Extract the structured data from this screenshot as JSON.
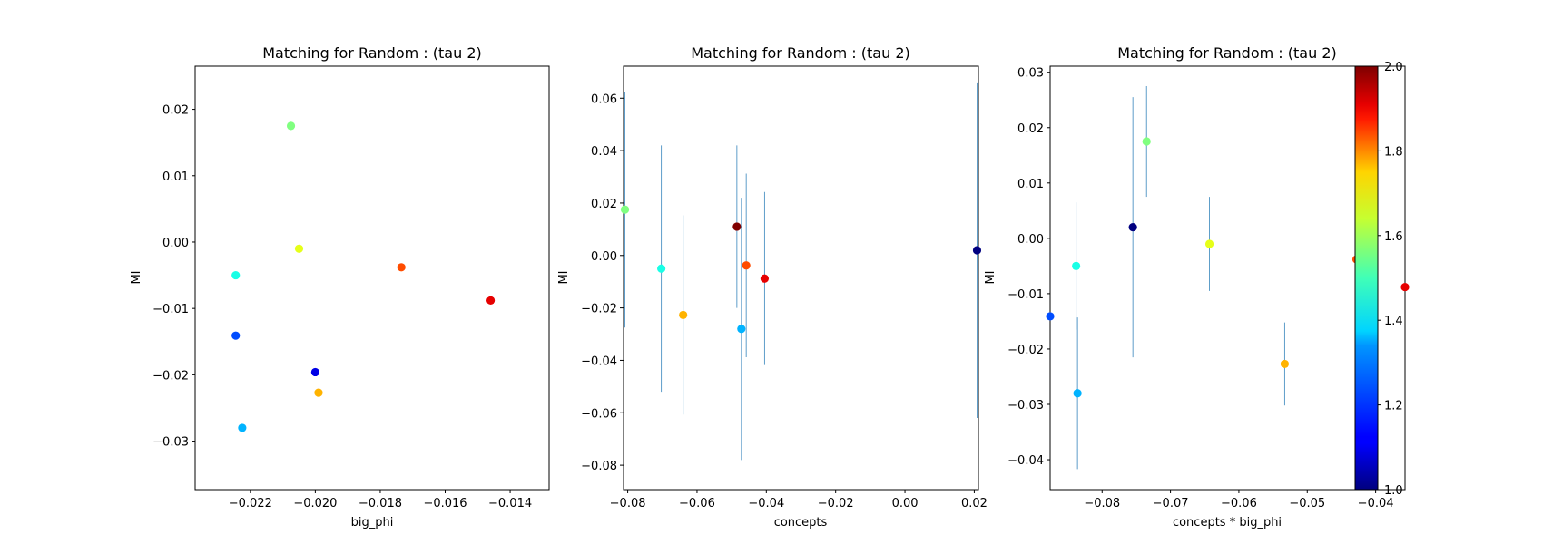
{
  "chart_data": [
    {
      "type": "scatter",
      "title": "Matching for Random : (tau 2)",
      "xlabel": "big_phi",
      "ylabel": "MI",
      "xlim": [
        -0.0237,
        -0.0128
      ],
      "ylim": [
        -0.0373,
        0.0265
      ],
      "xticks": [
        -0.022,
        -0.02,
        -0.018,
        -0.016,
        -0.014
      ],
      "xtick_labels": [
        "−0.022",
        "−0.020",
        "−0.018",
        "−0.016",
        "−0.014"
      ],
      "yticks": [
        -0.03,
        -0.02,
        -0.01,
        0.0,
        0.01,
        0.02
      ],
      "ytick_labels": [
        "−0.03",
        "−0.02",
        "−0.01",
        "0.00",
        "0.01",
        "0.02"
      ],
      "grid": false,
      "error_bars": false,
      "points": [
        {
          "x": -0.02075,
          "y": 0.0175,
          "c": 1.5
        },
        {
          "x": -0.0205,
          "y": -0.001,
          "c": 1.6
        },
        {
          "x": -0.02245,
          "y": -0.005,
          "c": 1.4
        },
        {
          "x": -0.01735,
          "y": -0.0038,
          "c": 1.8
        },
        {
          "x": -0.0146,
          "y": -0.0088,
          "c": 1.9
        },
        {
          "x": -0.02245,
          "y": -0.0141,
          "c": 1.2
        },
        {
          "x": -0.02,
          "y": -0.0196,
          "c": 1.1
        },
        {
          "x": -0.0199,
          "y": -0.0227,
          "c": 1.7
        },
        {
          "x": -0.02225,
          "y": -0.028,
          "c": 1.3
        }
      ]
    },
    {
      "type": "scatter",
      "title": "Matching for Random : (tau 2)",
      "xlabel": "concepts",
      "ylabel": "MI",
      "xlim": [
        -0.0812,
        0.0212
      ],
      "ylim": [
        -0.0893,
        0.0722
      ],
      "xticks": [
        -0.08,
        -0.06,
        -0.04,
        -0.02,
        0.0,
        0.02
      ],
      "xtick_labels": [
        "−0.08",
        "−0.06",
        "−0.04",
        "−0.02",
        "0.00",
        "0.02"
      ],
      "yticks": [
        -0.08,
        -0.06,
        -0.04,
        -0.02,
        0.0,
        0.02,
        0.04,
        0.06
      ],
      "ytick_labels": [
        "−0.08",
        "−0.06",
        "−0.04",
        "−0.02",
        "0.00",
        "0.02",
        "0.04",
        "0.06"
      ],
      "grid": false,
      "error_bars": true,
      "points": [
        {
          "x": -0.0808,
          "y": 0.0175,
          "c": 1.5,
          "err": 0.045
        },
        {
          "x": -0.0703,
          "y": -0.005,
          "c": 1.4,
          "err": 0.047
        },
        {
          "x": -0.064,
          "y": -0.0227,
          "c": 1.7,
          "err": 0.038
        },
        {
          "x": -0.0485,
          "y": 0.011,
          "c": 2.0,
          "err": 0.031
        },
        {
          "x": -0.0472,
          "y": -0.028,
          "c": 1.3,
          "err": 0.05
        },
        {
          "x": -0.0458,
          "y": -0.0038,
          "c": 1.8,
          "err": 0.035
        },
        {
          "x": -0.0405,
          "y": -0.0088,
          "c": 1.9,
          "err": 0.033
        },
        {
          "x": 0.0208,
          "y": 0.002,
          "c": 1.0,
          "err": 0.064
        }
      ]
    },
    {
      "type": "scatter",
      "title": "Matching for Random : (tau 2)",
      "xlabel": "concepts * big_phi",
      "ylabel": "MI",
      "xlim": [
        -0.0876,
        -0.0357
      ],
      "ylim": [
        -0.0454,
        0.0311
      ],
      "xticks": [
        -0.08,
        -0.07,
        -0.06,
        -0.05,
        -0.04
      ],
      "xtick_labels": [
        "−0.08",
        "−0.07",
        "−0.06",
        "−0.05",
        "−0.04"
      ],
      "yticks": [
        -0.04,
        -0.03,
        -0.02,
        -0.01,
        0.0,
        0.01,
        0.02,
        0.03
      ],
      "ytick_labels": [
        "−0.04",
        "−0.03",
        "−0.02",
        "−0.01",
        "0.00",
        "0.01",
        "0.02",
        "0.03"
      ],
      "grid": false,
      "error_bars": true,
      "points": [
        {
          "x": -0.0735,
          "y": 0.0175,
          "c": 1.5,
          "err": 0.01
        },
        {
          "x": -0.0755,
          "y": 0.002,
          "c": 1.0,
          "err": 0.0235
        },
        {
          "x": -0.0643,
          "y": -0.001,
          "c": 1.6,
          "err": 0.0085
        },
        {
          "x": -0.0838,
          "y": -0.005,
          "c": 1.4,
          "err": 0.0115
        },
        {
          "x": -0.0428,
          "y": -0.0038,
          "c": 1.8,
          "err": 0.0065
        },
        {
          "x": -0.0357,
          "y": -0.0088,
          "c": 1.9,
          "err": 0.0
        },
        {
          "x": -0.0836,
          "y": -0.028,
          "c": 1.3,
          "err": 0.0137
        },
        {
          "x": -0.0533,
          "y": -0.0227,
          "c": 1.7,
          "err": 0.0075
        },
        {
          "x": -0.0876,
          "y": -0.0141,
          "c": 1.2,
          "err": 0.0
        }
      ]
    }
  ],
  "colorbar": {
    "cmap": "jet",
    "min": 1.0,
    "max": 2.0,
    "ticks": [
      1.0,
      1.2,
      1.4,
      1.6,
      1.8,
      2.0
    ],
    "tick_labels": [
      "1.0",
      "1.2",
      "1.4",
      "1.6",
      "1.8",
      "2.0"
    ]
  }
}
